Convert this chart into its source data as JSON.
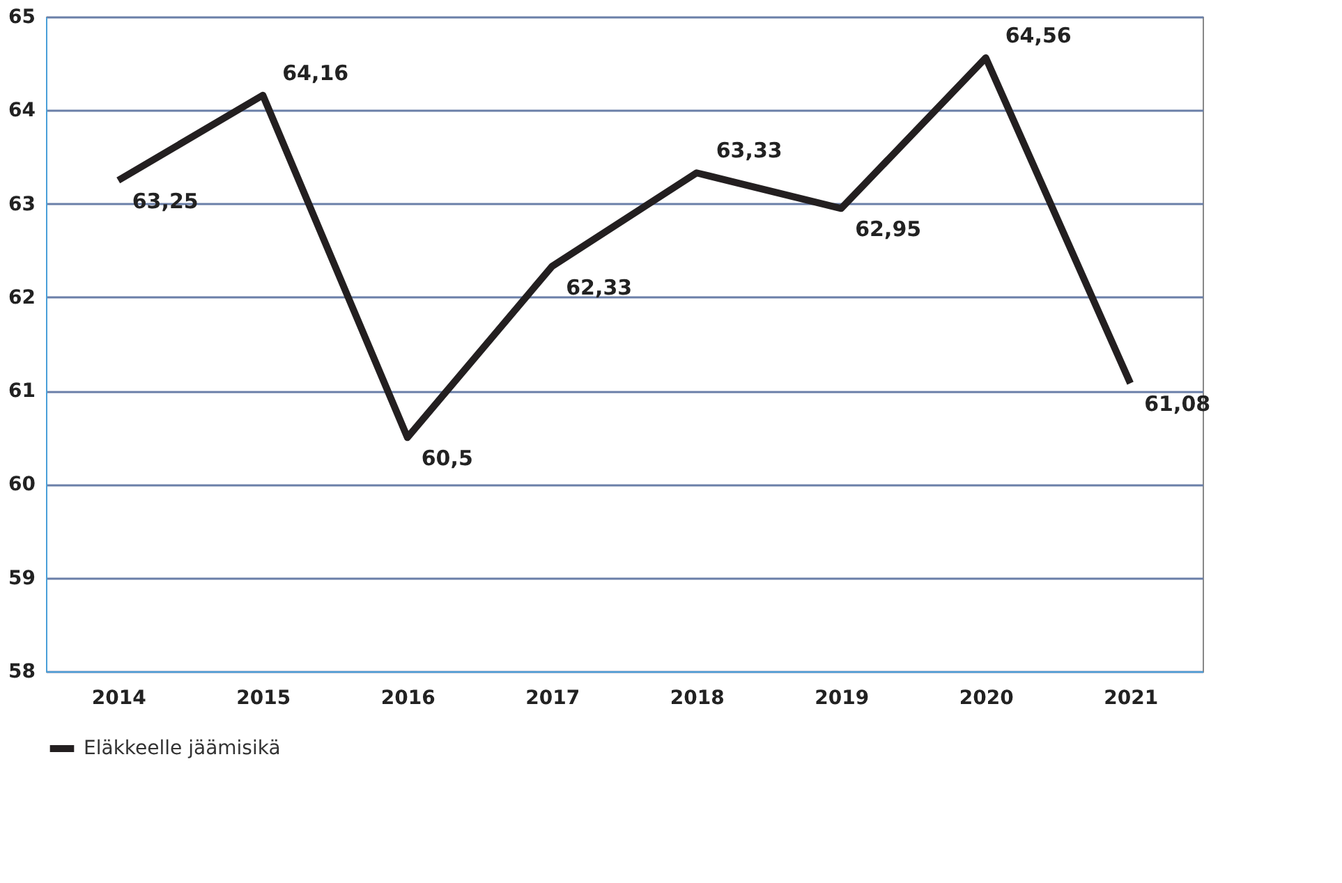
{
  "chart_data": {
    "type": "line",
    "categories": [
      "2014",
      "2015",
      "2016",
      "2017",
      "2018",
      "2019",
      "2020",
      "2021"
    ],
    "series": [
      {
        "name": "Eläkkeelle jäämisikä",
        "color": "#231f20",
        "values": [
          63.25,
          64.16,
          60.5,
          62.33,
          63.33,
          62.95,
          64.56,
          61.08
        ],
        "value_labels": [
          "63,25",
          "64,16",
          "60,5",
          "62,33",
          "63,33",
          "62,95",
          "64,56",
          "61,08"
        ]
      }
    ],
    "ylim": [
      58,
      65
    ],
    "yticks": [
      58,
      59,
      60,
      61,
      62,
      63,
      64,
      65
    ],
    "grid": "y",
    "legend": "bottom",
    "marker": "none",
    "line_style": "solid"
  }
}
